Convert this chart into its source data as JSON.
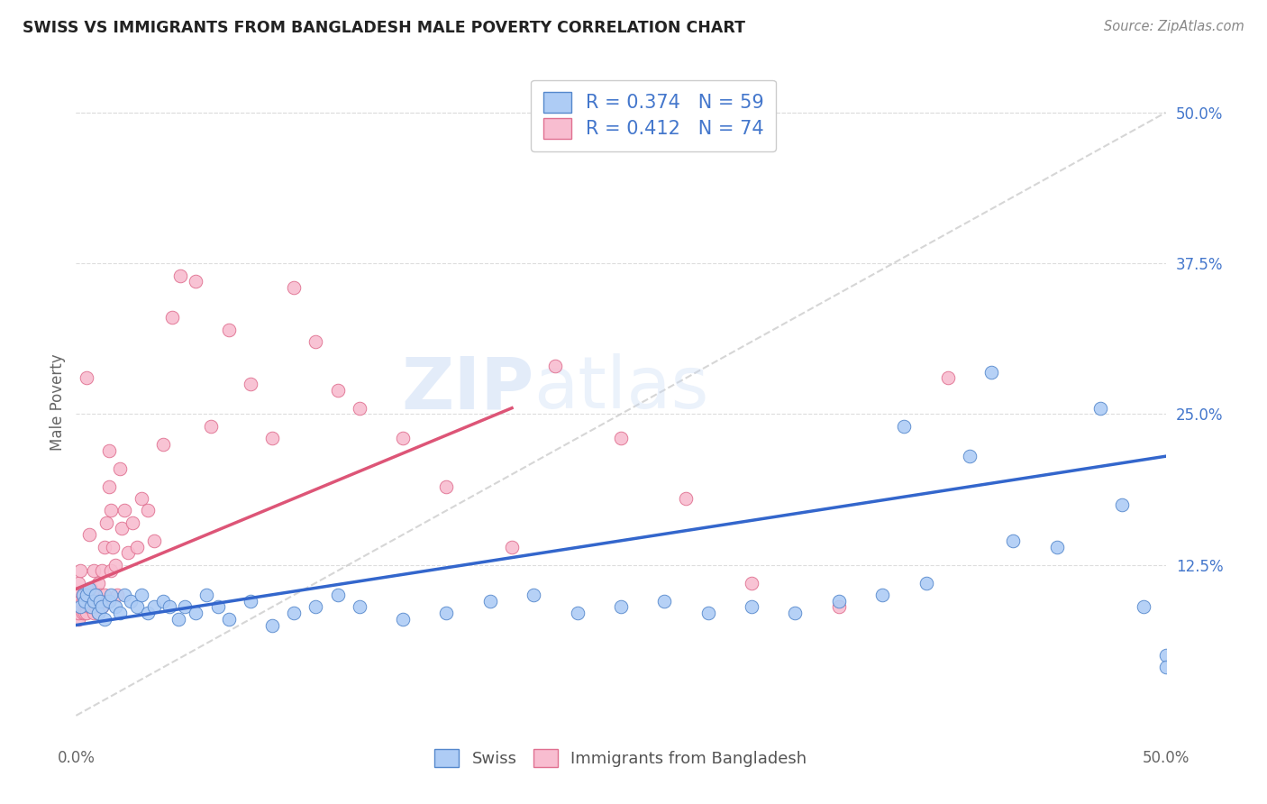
{
  "title": "SWISS VS IMMIGRANTS FROM BANGLADESH MALE POVERTY CORRELATION CHART",
  "source": "Source: ZipAtlas.com",
  "ylabel": "Male Poverty",
  "xlim": [
    0.0,
    0.5
  ],
  "ylim": [
    -0.02,
    0.54
  ],
  "yticks_right": [
    0.125,
    0.25,
    0.375,
    0.5
  ],
  "ytick_labels_right": [
    "12.5%",
    "25.0%",
    "37.5%",
    "50.0%"
  ],
  "swiss_color": "#aeccf5",
  "swiss_edge_color": "#5588cc",
  "bangladesh_color": "#f8bdd0",
  "bangladesh_edge_color": "#e07090",
  "swiss_R": 0.374,
  "swiss_N": 59,
  "bangladesh_R": 0.412,
  "bangladesh_N": 74,
  "legend_label_swiss": "Swiss",
  "legend_label_bangladesh": "Immigrants from Bangladesh",
  "trend_color_swiss": "#3366cc",
  "trend_color_bangladesh": "#dd5577",
  "trend_color_diagonal": "#cccccc",
  "watermark_zip": "ZIP",
  "watermark_atlas": "atlas",
  "swiss_trend_x0": 0.0,
  "swiss_trend_y0": 0.075,
  "swiss_trend_x1": 0.5,
  "swiss_trend_y1": 0.215,
  "bangladesh_trend_x0": 0.0,
  "bangladesh_trend_y0": 0.105,
  "bangladesh_trend_x1": 0.2,
  "bangladesh_trend_y1": 0.255,
  "swiss_x": [
    0.002,
    0.003,
    0.004,
    0.005,
    0.006,
    0.007,
    0.008,
    0.009,
    0.01,
    0.011,
    0.012,
    0.013,
    0.015,
    0.016,
    0.018,
    0.02,
    0.022,
    0.025,
    0.028,
    0.03,
    0.033,
    0.036,
    0.04,
    0.043,
    0.047,
    0.05,
    0.055,
    0.06,
    0.065,
    0.07,
    0.08,
    0.09,
    0.1,
    0.11,
    0.12,
    0.13,
    0.15,
    0.17,
    0.19,
    0.21,
    0.23,
    0.25,
    0.27,
    0.29,
    0.31,
    0.33,
    0.35,
    0.37,
    0.39,
    0.41,
    0.43,
    0.45,
    0.47,
    0.49,
    0.5,
    0.5,
    0.48,
    0.42,
    0.38
  ],
  "swiss_y": [
    0.09,
    0.1,
    0.095,
    0.1,
    0.105,
    0.09,
    0.095,
    0.1,
    0.085,
    0.095,
    0.09,
    0.08,
    0.095,
    0.1,
    0.09,
    0.085,
    0.1,
    0.095,
    0.09,
    0.1,
    0.085,
    0.09,
    0.095,
    0.09,
    0.08,
    0.09,
    0.085,
    0.1,
    0.09,
    0.08,
    0.095,
    0.075,
    0.085,
    0.09,
    0.1,
    0.09,
    0.08,
    0.085,
    0.095,
    0.1,
    0.085,
    0.09,
    0.095,
    0.085,
    0.09,
    0.085,
    0.095,
    0.1,
    0.11,
    0.215,
    0.145,
    0.14,
    0.255,
    0.09,
    0.05,
    0.04,
    0.175,
    0.285,
    0.24
  ],
  "bangladesh_x": [
    0.001,
    0.001,
    0.001,
    0.001,
    0.002,
    0.002,
    0.002,
    0.003,
    0.003,
    0.003,
    0.004,
    0.004,
    0.005,
    0.005,
    0.005,
    0.006,
    0.006,
    0.007,
    0.007,
    0.007,
    0.008,
    0.008,
    0.008,
    0.009,
    0.009,
    0.01,
    0.01,
    0.01,
    0.01,
    0.011,
    0.011,
    0.012,
    0.012,
    0.013,
    0.013,
    0.014,
    0.014,
    0.015,
    0.015,
    0.016,
    0.016,
    0.017,
    0.018,
    0.019,
    0.02,
    0.021,
    0.022,
    0.024,
    0.026,
    0.028,
    0.03,
    0.033,
    0.036,
    0.04,
    0.044,
    0.048,
    0.055,
    0.062,
    0.07,
    0.08,
    0.09,
    0.1,
    0.11,
    0.12,
    0.13,
    0.15,
    0.17,
    0.2,
    0.22,
    0.25,
    0.28,
    0.31,
    0.35,
    0.4
  ],
  "bangladesh_y": [
    0.08,
    0.1,
    0.11,
    0.085,
    0.12,
    0.09,
    0.095,
    0.085,
    0.1,
    0.095,
    0.085,
    0.1,
    0.28,
    0.09,
    0.085,
    0.15,
    0.09,
    0.105,
    0.095,
    0.09,
    0.12,
    0.1,
    0.085,
    0.095,
    0.09,
    0.11,
    0.095,
    0.085,
    0.095,
    0.1,
    0.09,
    0.12,
    0.09,
    0.1,
    0.14,
    0.095,
    0.16,
    0.19,
    0.22,
    0.17,
    0.12,
    0.14,
    0.125,
    0.1,
    0.205,
    0.155,
    0.17,
    0.135,
    0.16,
    0.14,
    0.18,
    0.17,
    0.145,
    0.225,
    0.33,
    0.365,
    0.36,
    0.24,
    0.32,
    0.275,
    0.23,
    0.355,
    0.31,
    0.27,
    0.255,
    0.23,
    0.19,
    0.14,
    0.29,
    0.23,
    0.18,
    0.11,
    0.09,
    0.28
  ]
}
